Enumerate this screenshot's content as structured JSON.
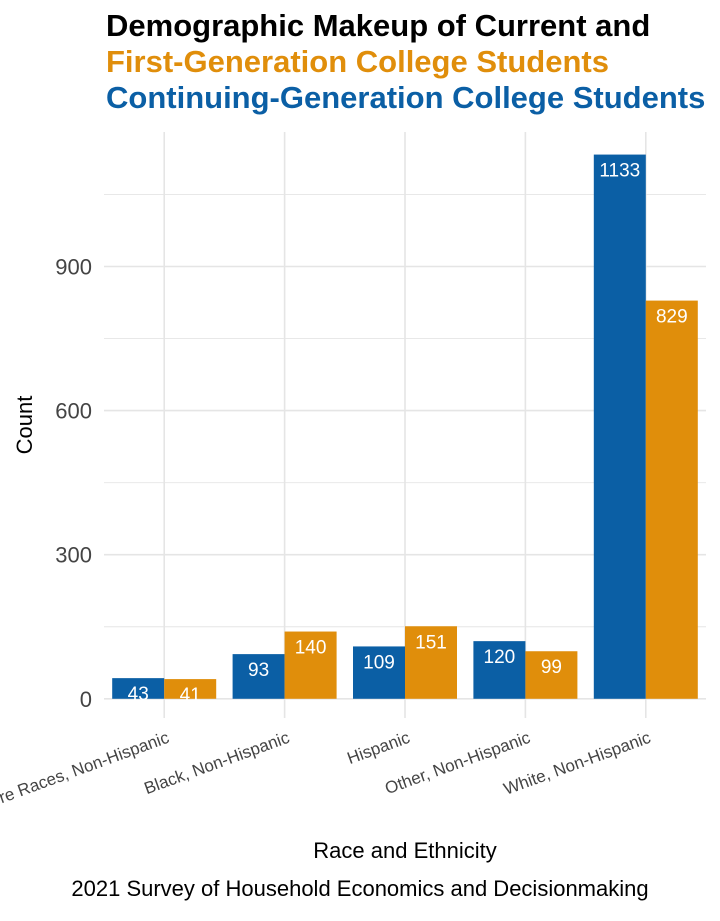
{
  "title": {
    "line1": "Demographic Makeup of Current and",
    "line2": "First-Generation  College Students",
    "line3": "Continuing-Generation  College Students"
  },
  "caption": "2021 Survey of Household Economics and Decisionmaking",
  "colors": {
    "continuing": "#0B5FA5",
    "first": "#E08E0B",
    "grid": "#E5E5E5",
    "tick_text": "#444444"
  },
  "chart_data": {
    "type": "bar",
    "xlabel": "Race and Ethnicity",
    "ylabel": "Count",
    "categories": [
      "Two or More Races, Non-Hispanic",
      "Black, Non-Hispanic",
      "Hispanic",
      "Other, Non-Hispanic",
      "White, Non-Hispanic"
    ],
    "series": [
      {
        "name": "Continuing-Generation  College Students",
        "color": "#0B5FA5",
        "values": [
          43,
          93,
          109,
          120,
          1133
        ]
      },
      {
        "name": "First-Generation  College Students",
        "color": "#E08E0B",
        "values": [
          41,
          140,
          151,
          99,
          829
        ]
      }
    ],
    "ylim": [
      -40,
      1180
    ],
    "yticks": [
      0,
      300,
      600,
      900
    ],
    "grid": true,
    "legend": "title"
  }
}
